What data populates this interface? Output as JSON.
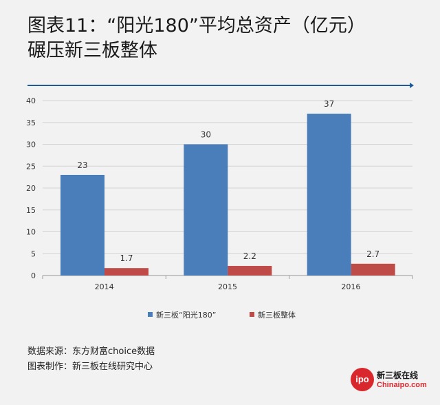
{
  "header": {
    "title_line1": "图表11：“阳光180”平均总资产（亿元）",
    "title_line2": "碾压新三板整体"
  },
  "chart_data": {
    "type": "bar",
    "categories": [
      "2014",
      "2015",
      "2016"
    ],
    "series": [
      {
        "name": "新三板“阳光180”",
        "values": [
          23,
          30,
          37
        ],
        "color": "#4a7ebb"
      },
      {
        "name": "新三板整体",
        "values": [
          1.7,
          2.2,
          2.7
        ],
        "color": "#be4b48"
      }
    ],
    "ylim": [
      0,
      40
    ],
    "yticks": [
      0,
      5,
      10,
      15,
      20,
      25,
      30,
      35,
      40
    ],
    "grid": true,
    "legend": "bottom",
    "title": "",
    "xlabel": "",
    "ylabel": ""
  },
  "footer": {
    "source_line": "数据来源：东方财富choice数据",
    "made_by_line": "图表制作：新三板在线研究中心"
  },
  "logo": {
    "badge": "ipo",
    "name_cn": "新三板在线",
    "name_en": "Chinaipo.com"
  }
}
